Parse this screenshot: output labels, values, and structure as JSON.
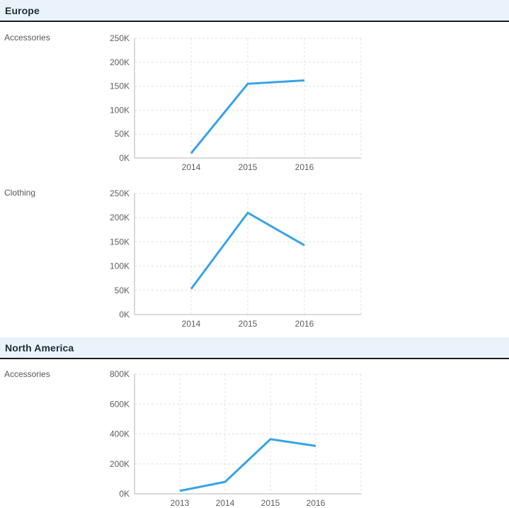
{
  "sections": [
    {
      "title": "Europe"
    },
    {
      "title": "North America"
    }
  ],
  "rows": [
    {
      "label": "Accessories"
    },
    {
      "label": "Clothing"
    },
    {
      "label": "Accessories"
    }
  ],
  "colors": {
    "line": "#38a3e8",
    "header_background": "#eaf3fc",
    "header_border": "#1d1d1b",
    "header_text": "#232e39",
    "row_label_text": "#5a5856",
    "axis_line": "#b5b5b5",
    "gridline": "#e0e0e0",
    "tick_text": "#605e5c"
  },
  "chart_data": [
    {
      "type": "line",
      "section": "Europe",
      "row_label": "Accessories",
      "categories": [
        "2014",
        "2015",
        "2016"
      ],
      "values": [
        10000,
        155000,
        162000
      ],
      "ylim": [
        0,
        250000
      ],
      "ytick_interval": 50000,
      "ytick_labels": [
        "0K",
        "50K",
        "100K",
        "150K",
        "200K",
        "250K"
      ],
      "grid": true,
      "legend": "none",
      "title": ""
    },
    {
      "type": "line",
      "section": "Europe",
      "row_label": "Clothing",
      "categories": [
        "2014",
        "2015",
        "2016"
      ],
      "values": [
        53000,
        210000,
        143000
      ],
      "ylim": [
        0,
        250000
      ],
      "ytick_interval": 50000,
      "ytick_labels": [
        "0K",
        "50K",
        "100K",
        "150K",
        "200K",
        "250K"
      ],
      "grid": true,
      "legend": "none",
      "title": ""
    },
    {
      "type": "line",
      "section": "North America",
      "row_label": "Accessories",
      "categories": [
        "2013",
        "2014",
        "2015",
        "2016"
      ],
      "values": [
        20000,
        80000,
        365000,
        320000
      ],
      "ylim": [
        0,
        800000
      ],
      "ytick_interval": 200000,
      "ytick_labels": [
        "0K",
        "200K",
        "400K",
        "600K",
        "800K"
      ],
      "grid": true,
      "legend": "none",
      "title": ""
    }
  ]
}
